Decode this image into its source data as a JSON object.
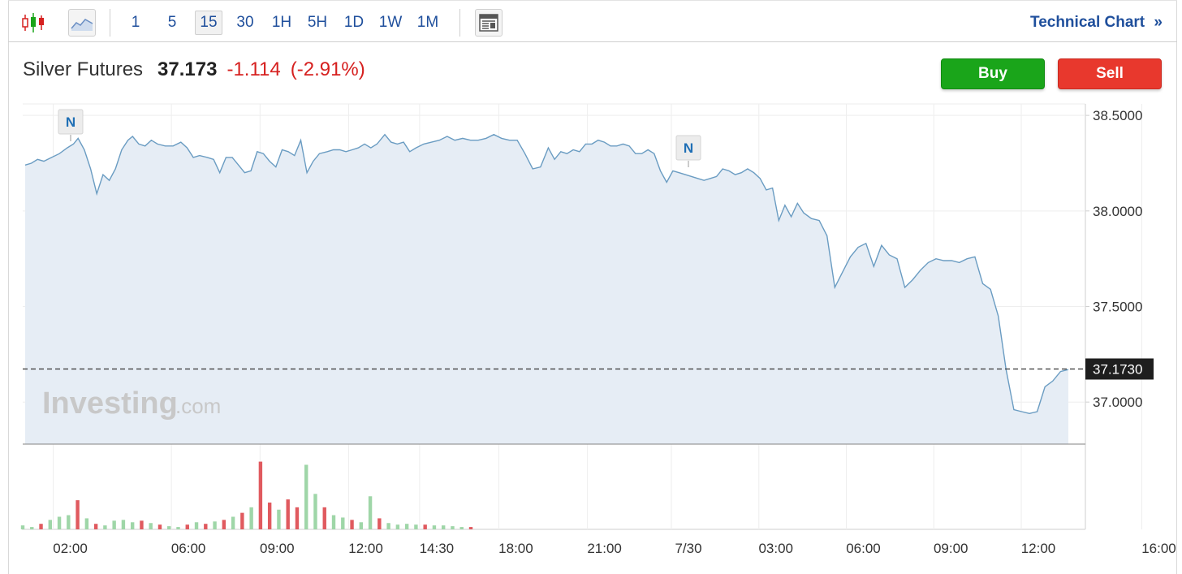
{
  "toolbar": {
    "intervals": [
      "1",
      "5",
      "15",
      "30",
      "1H",
      "5H",
      "1D",
      "1W",
      "1M"
    ],
    "active_interval": "15",
    "technical_chart_label": "Technical Chart",
    "technical_chart_chevron": "»",
    "icons": [
      "candlestick-icon",
      "area-chart-icon",
      "news-panel-icon"
    ]
  },
  "quote": {
    "name": "Silver Futures",
    "price": "37.173",
    "change": "-1.114",
    "change_pct": "(-2.91%)",
    "direction": "down",
    "down_color": "#d6201f"
  },
  "actions": {
    "buy_label": "Buy",
    "sell_label": "Sell"
  },
  "watermark": {
    "brand": "Investing",
    "suffix": ".com"
  },
  "news_marker_label": "N",
  "chart_data": {
    "type": "area",
    "title": "",
    "y_axis": {
      "ticks": [
        "38.5000",
        "38.0000",
        "37.5000",
        "37.0000"
      ],
      "ylim": [
        36.78,
        38.56
      ]
    },
    "last_price_label": "37.1730",
    "last_price": 37.173,
    "x_tick_labels": [
      "02:00",
      "06:00",
      "09:00",
      "12:00",
      "14:30",
      "18:00",
      "21:00",
      "7/30",
      "03:00",
      "06:00",
      "09:00",
      "12:00",
      "16:00"
    ],
    "x_tick_positions": [
      0.045,
      0.145,
      0.22,
      0.295,
      0.355,
      0.422,
      0.497,
      0.568,
      0.642,
      0.716,
      0.79,
      0.864,
      0.966
    ],
    "news_markers_at": [
      0.05,
      0.628
    ],
    "price_series": [
      [
        0.0,
        38.24
      ],
      [
        0.004,
        38.25
      ],
      [
        0.008,
        38.27
      ],
      [
        0.012,
        38.26
      ],
      [
        0.017,
        38.28
      ],
      [
        0.022,
        38.3
      ],
      [
        0.027,
        38.33
      ],
      [
        0.031,
        38.35
      ],
      [
        0.034,
        38.38
      ],
      [
        0.038,
        38.32
      ],
      [
        0.042,
        38.22
      ],
      [
        0.046,
        38.09
      ],
      [
        0.05,
        38.19
      ],
      [
        0.054,
        38.16
      ],
      [
        0.058,
        38.22
      ],
      [
        0.062,
        38.32
      ],
      [
        0.066,
        38.37
      ],
      [
        0.069,
        38.39
      ],
      [
        0.073,
        38.35
      ],
      [
        0.077,
        38.34
      ],
      [
        0.081,
        38.37
      ],
      [
        0.085,
        38.35
      ],
      [
        0.09,
        38.34
      ],
      [
        0.095,
        38.34
      ],
      [
        0.1,
        38.36
      ],
      [
        0.104,
        38.33
      ],
      [
        0.108,
        38.28
      ],
      [
        0.112,
        38.29
      ],
      [
        0.117,
        38.28
      ],
      [
        0.121,
        38.27
      ],
      [
        0.125,
        38.2
      ],
      [
        0.129,
        38.28
      ],
      [
        0.133,
        38.28
      ],
      [
        0.137,
        38.24
      ],
      [
        0.141,
        38.2
      ],
      [
        0.145,
        38.21
      ],
      [
        0.149,
        38.31
      ],
      [
        0.153,
        38.3
      ],
      [
        0.157,
        38.26
      ],
      [
        0.161,
        38.23
      ],
      [
        0.165,
        38.32
      ],
      [
        0.169,
        38.31
      ],
      [
        0.173,
        38.29
      ],
      [
        0.177,
        38.37
      ],
      [
        0.181,
        38.2
      ],
      [
        0.185,
        38.26
      ],
      [
        0.189,
        38.3
      ],
      [
        0.194,
        38.31
      ],
      [
        0.198,
        38.32
      ],
      [
        0.202,
        38.32
      ],
      [
        0.206,
        38.31
      ],
      [
        0.21,
        38.32
      ],
      [
        0.214,
        38.33
      ],
      [
        0.218,
        38.35
      ],
      [
        0.222,
        38.33
      ],
      [
        0.226,
        38.35
      ],
      [
        0.231,
        38.4
      ],
      [
        0.235,
        38.36
      ],
      [
        0.239,
        38.35
      ],
      [
        0.243,
        38.36
      ],
      [
        0.247,
        38.31
      ],
      [
        0.251,
        38.33
      ],
      [
        0.256,
        38.35
      ],
      [
        0.261,
        38.36
      ],
      [
        0.266,
        38.37
      ],
      [
        0.271,
        38.39
      ],
      [
        0.276,
        38.37
      ],
      [
        0.281,
        38.38
      ],
      [
        0.286,
        38.37
      ],
      [
        0.291,
        38.37
      ],
      [
        0.296,
        38.38
      ],
      [
        0.301,
        38.4
      ],
      [
        0.306,
        38.38
      ],
      [
        0.311,
        38.37
      ],
      [
        0.316,
        38.37
      ],
      [
        0.321,
        38.3
      ],
      [
        0.326,
        38.22
      ],
      [
        0.331,
        38.23
      ],
      [
        0.336,
        38.33
      ],
      [
        0.34,
        38.27
      ],
      [
        0.344,
        38.31
      ],
      [
        0.348,
        38.3
      ],
      [
        0.352,
        38.32
      ],
      [
        0.356,
        38.31
      ],
      [
        0.36,
        38.35
      ],
      [
        0.364,
        38.35
      ],
      [
        0.368,
        38.37
      ],
      [
        0.372,
        38.36
      ],
      [
        0.376,
        38.34
      ],
      [
        0.38,
        38.34
      ],
      [
        0.384,
        38.35
      ],
      [
        0.388,
        38.34
      ],
      [
        0.392,
        38.3
      ],
      [
        0.396,
        38.3
      ],
      [
        0.4,
        38.32
      ],
      [
        0.404,
        38.3
      ],
      [
        0.408,
        38.21
      ],
      [
        0.412,
        38.15
      ],
      [
        0.416,
        38.21
      ],
      [
        0.42,
        38.2
      ],
      [
        0.424,
        38.19
      ],
      [
        0.428,
        38.18
      ],
      [
        0.432,
        38.17
      ],
      [
        0.436,
        38.16
      ],
      [
        0.44,
        38.17
      ],
      [
        0.444,
        38.18
      ],
      [
        0.448,
        38.22
      ],
      [
        0.452,
        38.21
      ],
      [
        0.456,
        38.19
      ],
      [
        0.46,
        38.2
      ],
      [
        0.464,
        38.22
      ],
      [
        0.468,
        38.2
      ],
      [
        0.472,
        38.17
      ],
      [
        0.476,
        38.11
      ],
      [
        0.48,
        38.12
      ],
      [
        0.484,
        37.95
      ],
      [
        0.488,
        38.03
      ],
      [
        0.492,
        37.97
      ],
      [
        0.496,
        38.04
      ],
      [
        0.5,
        37.99
      ],
      [
        0.505,
        37.96
      ],
      [
        0.51,
        37.95
      ],
      [
        0.515,
        37.87
      ],
      [
        0.52,
        37.6
      ],
      [
        0.525,
        37.68
      ],
      [
        0.53,
        37.76
      ],
      [
        0.535,
        37.81
      ],
      [
        0.54,
        37.83
      ],
      [
        0.545,
        37.71
      ],
      [
        0.55,
        37.82
      ],
      [
        0.555,
        37.77
      ],
      [
        0.56,
        37.75
      ],
      [
        0.565,
        37.6
      ],
      [
        0.57,
        37.64
      ],
      [
        0.575,
        37.69
      ],
      [
        0.58,
        37.73
      ],
      [
        0.585,
        37.75
      ],
      [
        0.59,
        37.74
      ],
      [
        0.595,
        37.74
      ],
      [
        0.6,
        37.73
      ],
      [
        0.605,
        37.75
      ],
      [
        0.61,
        37.76
      ],
      [
        0.615,
        37.62
      ],
      [
        0.62,
        37.59
      ],
      [
        0.625,
        37.45
      ],
      [
        0.63,
        37.17
      ],
      [
        0.635,
        36.96
      ],
      [
        0.64,
        36.95
      ],
      [
        0.645,
        36.94
      ],
      [
        0.65,
        36.95
      ],
      [
        0.655,
        37.08
      ],
      [
        0.66,
        37.11
      ],
      [
        0.665,
        37.16
      ],
      [
        0.67,
        37.17
      ]
    ],
    "volume_series": [
      [
        0.02,
        0.05,
        "up"
      ],
      [
        0.024,
        0.03,
        "up"
      ],
      [
        0.028,
        0.07,
        "down"
      ],
      [
        0.032,
        0.12,
        "up"
      ],
      [
        0.036,
        0.16,
        "up"
      ],
      [
        0.04,
        0.18,
        "up"
      ],
      [
        0.044,
        0.37,
        "down"
      ],
      [
        0.048,
        0.14,
        "up"
      ],
      [
        0.052,
        0.07,
        "down"
      ],
      [
        0.056,
        0.05,
        "up"
      ],
      [
        0.06,
        0.11,
        "up"
      ],
      [
        0.064,
        0.12,
        "up"
      ],
      [
        0.068,
        0.09,
        "up"
      ],
      [
        0.072,
        0.11,
        "down"
      ],
      [
        0.076,
        0.08,
        "up"
      ],
      [
        0.08,
        0.06,
        "down"
      ],
      [
        0.084,
        0.04,
        "up"
      ],
      [
        0.088,
        0.03,
        "up"
      ],
      [
        0.092,
        0.06,
        "down"
      ],
      [
        0.096,
        0.09,
        "up"
      ],
      [
        0.1,
        0.07,
        "down"
      ],
      [
        0.104,
        0.1,
        "up"
      ],
      [
        0.108,
        0.12,
        "down"
      ],
      [
        0.112,
        0.16,
        "up"
      ],
      [
        0.116,
        0.21,
        "down"
      ],
      [
        0.12,
        0.28,
        "up"
      ],
      [
        0.124,
        0.86,
        "down"
      ],
      [
        0.128,
        0.34,
        "down"
      ],
      [
        0.132,
        0.25,
        "up"
      ],
      [
        0.136,
        0.38,
        "down"
      ],
      [
        0.14,
        0.28,
        "down"
      ],
      [
        0.144,
        0.82,
        "up"
      ],
      [
        0.148,
        0.45,
        "up"
      ],
      [
        0.152,
        0.28,
        "down"
      ],
      [
        0.156,
        0.18,
        "up"
      ],
      [
        0.16,
        0.15,
        "up"
      ],
      [
        0.164,
        0.12,
        "down"
      ],
      [
        0.168,
        0.09,
        "up"
      ],
      [
        0.172,
        0.42,
        "up"
      ],
      [
        0.176,
        0.14,
        "down"
      ],
      [
        0.18,
        0.08,
        "up"
      ],
      [
        0.184,
        0.06,
        "up"
      ],
      [
        0.188,
        0.07,
        "up"
      ],
      [
        0.192,
        0.06,
        "up"
      ],
      [
        0.196,
        0.06,
        "down"
      ],
      [
        0.2,
        0.05,
        "up"
      ],
      [
        0.204,
        0.05,
        "up"
      ],
      [
        0.208,
        0.04,
        "up"
      ],
      [
        0.212,
        0.03,
        "up"
      ],
      [
        0.216,
        0.03,
        "down"
      ]
    ]
  }
}
